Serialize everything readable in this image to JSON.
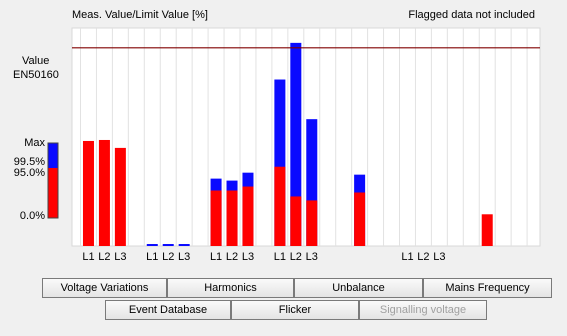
{
  "header": {
    "title": "Meas. Value/Limit Value [%]",
    "note": "Flagged data not included"
  },
  "chart_data": {
    "type": "bar",
    "categories": [
      "L1",
      "L2",
      "L3",
      "L1",
      "L2",
      "L3",
      "L1",
      "L2",
      "L3",
      "L1",
      "L2",
      "L3",
      null,
      null,
      null,
      "L1",
      "L2",
      "L3",
      null,
      null,
      null
    ],
    "series": [
      {
        "name": "Max",
        "color": "#0a0aff",
        "values": [
          null,
          null,
          null,
          1,
          1,
          1,
          34,
          33,
          37,
          84,
          102.5,
          64,
          null,
          36,
          null,
          null,
          null,
          null,
          null,
          null,
          null
        ]
      },
      {
        "name": "95.0%",
        "color": "#ff0000",
        "values": [
          53,
          53.5,
          49.5,
          null,
          null,
          null,
          28,
          28,
          30,
          40,
          25,
          23,
          null,
          27,
          null,
          null,
          null,
          null,
          null,
          16,
          null
        ]
      }
    ],
    "ylim": [
      0,
      110
    ],
    "limit_line": {
      "value": 100,
      "color": "#800000",
      "label_lines": [
        "Value",
        "EN50160"
      ]
    },
    "legend_extra": [
      "99.5%",
      "0.0%"
    ]
  },
  "buttons": [
    {
      "label": "Voltage Variations",
      "enabled": true
    },
    {
      "label": "Harmonics",
      "enabled": true
    },
    {
      "label": "Unbalance",
      "enabled": true
    },
    {
      "label": "Mains Frequency",
      "enabled": true
    },
    {
      "label": "Event Database",
      "enabled": true
    },
    {
      "label": "Flicker",
      "enabled": true
    },
    {
      "label": "Signalling voltage",
      "enabled": false
    }
  ]
}
